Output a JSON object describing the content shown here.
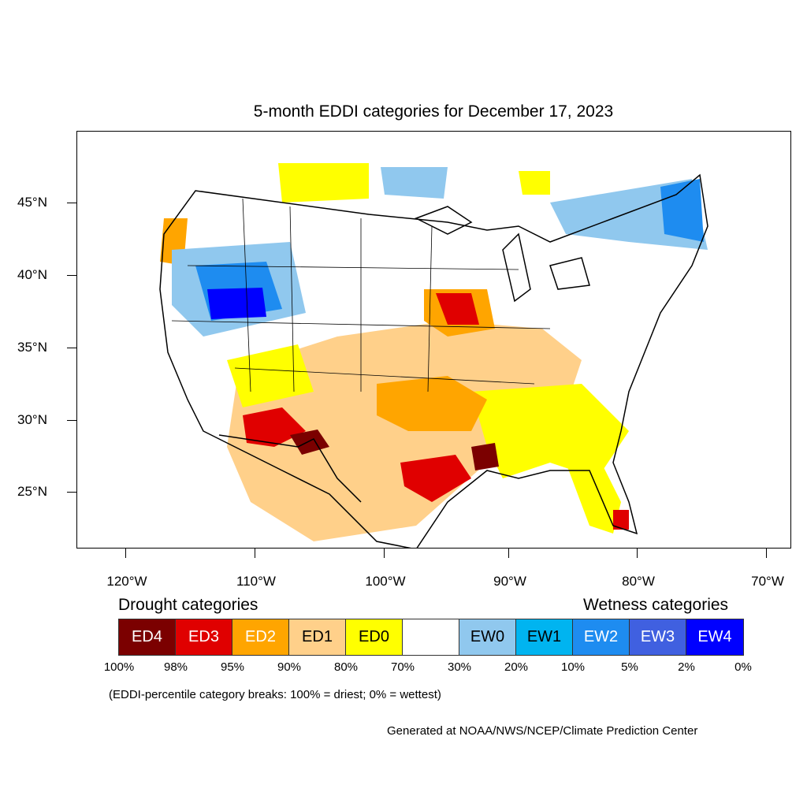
{
  "title": "5-month EDDI categories for December 17, 2023",
  "y_axis_labels": [
    "45°N",
    "40°N",
    "35°N",
    "30°N",
    "25°N"
  ],
  "x_axis_labels": [
    "120°W",
    "110°W",
    "100°W",
    "90°W",
    "80°W",
    "70°W"
  ],
  "legend": {
    "drought_heading": "Drought categories",
    "wetness_heading": "Wetness categories",
    "categories": [
      {
        "label": "ED4",
        "color": "#7b0000",
        "text_color": "#ffffff"
      },
      {
        "label": "ED3",
        "color": "#e00000",
        "text_color": "#ffffff"
      },
      {
        "label": "ED2",
        "color": "#ffa500",
        "text_color": "#ffffff"
      },
      {
        "label": "ED1",
        "color": "#ffd08a",
        "text_color": "#000000"
      },
      {
        "label": "ED0",
        "color": "#ffff00",
        "text_color": "#000000"
      },
      {
        "label": "",
        "color": "#ffffff",
        "text_color": "#000000"
      },
      {
        "label": "EW0",
        "color": "#90c8ee",
        "text_color": "#000000"
      },
      {
        "label": "EW1",
        "color": "#00b4f0",
        "text_color": "#000000"
      },
      {
        "label": "EW2",
        "color": "#1e8cf0",
        "text_color": "#ffffff"
      },
      {
        "label": "EW3",
        "color": "#4060e0",
        "text_color": "#ffffff"
      },
      {
        "label": "EW4",
        "color": "#0000ff",
        "text_color": "#ffffff"
      }
    ],
    "percentiles": [
      "100%",
      "98%",
      "95%",
      "90%",
      "80%",
      "70%",
      "30%",
      "20%",
      "10%",
      "5%",
      "2%",
      "0%"
    ]
  },
  "note": "(EDDI-percentile category breaks: 100% = driest; 0% = wettest)",
  "credit": "Generated at NOAA/NWS/NCEP/Climate Prediction Center"
}
